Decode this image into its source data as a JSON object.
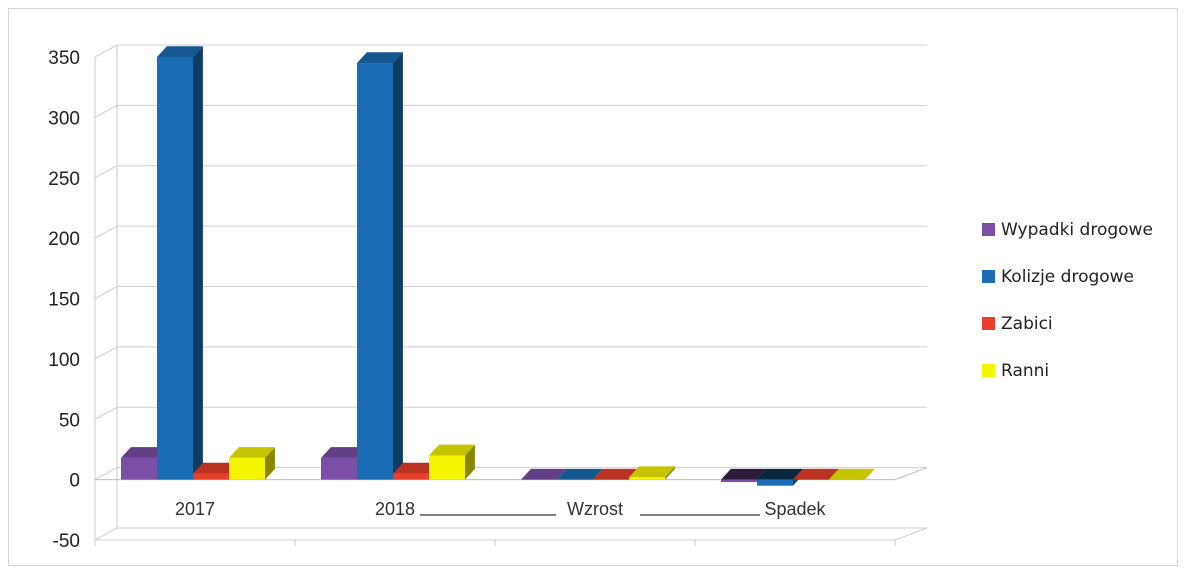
{
  "chart_data": {
    "type": "bar",
    "categories": [
      "2017",
      "2018",
      "Wzrost",
      "Spadek"
    ],
    "series": [
      {
        "name": "Wypadki drogowe",
        "color": "#7b4fa6",
        "values": [
          18,
          18,
          0,
          -2
        ]
      },
      {
        "name": "Kolizje drogowe",
        "color": "#1a6db5",
        "values": [
          350,
          345,
          0,
          -5
        ]
      },
      {
        "name": "Zabici",
        "color": "#e8402b",
        "values": [
          5,
          5,
          0,
          0
        ]
      },
      {
        "name": "Ranni",
        "color": "#f5f500",
        "values": [
          18,
          20,
          2,
          0
        ]
      }
    ],
    "ylim": [
      -50,
      350
    ],
    "yticks": [
      "-50",
      "0",
      "50",
      "100",
      "150",
      "200",
      "250",
      "300",
      "350"
    ],
    "grid": true,
    "legend_position": "right"
  }
}
